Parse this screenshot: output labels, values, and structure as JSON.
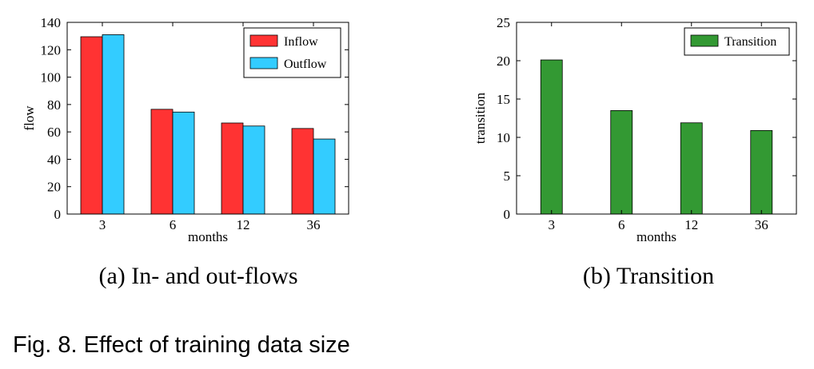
{
  "figure": {
    "caption": "Fig. 8. Effect of training data size",
    "subcaption_a": "(a) In- and out-flows",
    "subcaption_b": "(b) Transition"
  },
  "chart_data": [
    {
      "type": "bar",
      "categories": [
        "3",
        "6",
        "12",
        "36"
      ],
      "series": [
        {
          "name": "Inflow",
          "values": [
            129.5,
            76.5,
            66.5,
            62.5
          ],
          "color": "#ff3333"
        },
        {
          "name": "Outflow",
          "values": [
            131,
            74.5,
            64.3,
            54.8
          ],
          "color": "#33ccff"
        }
      ],
      "xlabel": "months",
      "ylabel": "flow",
      "ylim": [
        0,
        140
      ],
      "yticks": [
        0,
        20,
        40,
        60,
        80,
        100,
        120,
        140
      ],
      "legend": "top-right",
      "grid": false
    },
    {
      "type": "bar",
      "categories": [
        "3",
        "6",
        "12",
        "36"
      ],
      "series": [
        {
          "name": "Transition",
          "values": [
            20.1,
            13.5,
            11.9,
            10.9
          ],
          "color": "#339933"
        }
      ],
      "xlabel": "months",
      "ylabel": "transition",
      "ylim": [
        0,
        25
      ],
      "yticks": [
        0,
        5,
        10,
        15,
        20,
        25
      ],
      "legend": "top-right",
      "grid": false
    }
  ]
}
